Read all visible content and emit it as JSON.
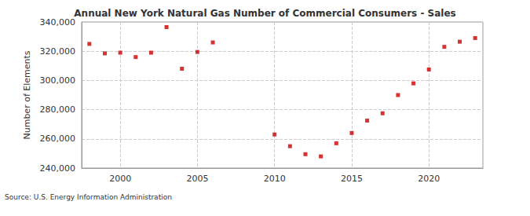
{
  "chart_data": {
    "type": "scatter",
    "title": "Annual New York Natural Gas Number of Commercial Consumers - Sales",
    "y_label": "Number of Elements",
    "annotation": "Source: U.S. Energy Information Administration",
    "x": [
      1998,
      1999,
      2000,
      2001,
      2002,
      2003,
      2004,
      2005,
      2006,
      2010,
      2011,
      2012,
      2013,
      2014,
      2015,
      2016,
      2017,
      2018,
      2019,
      2020,
      2021,
      2022,
      2023
    ],
    "values": [
      325000,
      318500,
      319000,
      316000,
      319000,
      336500,
      308000,
      319500,
      326000,
      263000,
      255000,
      249500,
      248000,
      257000,
      264000,
      272500,
      277500,
      290000,
      298000,
      307500,
      323000,
      326500,
      329000
    ],
    "color": "#cc0000",
    "marker": "square",
    "xlim": [
      1997.5,
      2023.5
    ],
    "xticks": [
      2000,
      2005,
      2010,
      2015,
      2020
    ],
    "ylim": [
      240000,
      340000
    ],
    "yticks": [
      {
        "value": 240000,
        "label": "240,000"
      },
      {
        "value": 260000,
        "label": "260,000"
      },
      {
        "value": 280000,
        "label": "280,000"
      },
      {
        "value": 300000,
        "label": "300,000"
      },
      {
        "value": 320000,
        "label": "320,000"
      },
      {
        "value": 340000,
        "label": "340,000"
      }
    ],
    "grid": true
  }
}
